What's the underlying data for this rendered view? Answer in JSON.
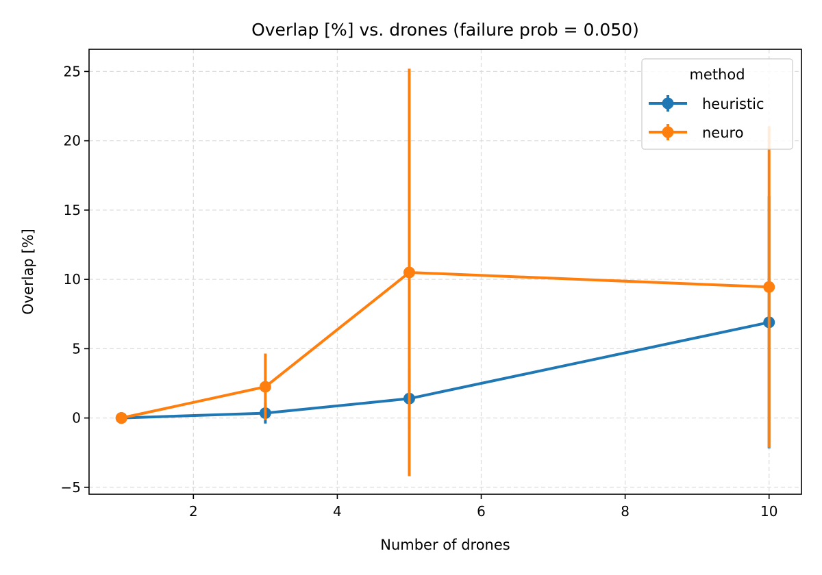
{
  "chart_data": {
    "type": "line",
    "title": "Overlap [%] vs. drones (failure prob = 0.050)",
    "xlabel": "Number of drones",
    "ylabel": "Overlap [%]",
    "xlim": [
      0.55,
      10.45
    ],
    "ylim": [
      -5.5,
      26.6
    ],
    "x_ticks": [
      2,
      4,
      6,
      8,
      10
    ],
    "x_tick_labels": [
      "2",
      "4",
      "6",
      "8",
      "10"
    ],
    "y_ticks": [
      -5,
      0,
      5,
      10,
      15,
      20,
      25
    ],
    "y_tick_labels": [
      "−5",
      "0",
      "5",
      "10",
      "15",
      "20",
      "25"
    ],
    "grid": true,
    "legend": {
      "title": "method",
      "placement": "top-right"
    },
    "series": [
      {
        "name": "heuristic",
        "color": "#1f77b4",
        "x": [
          1,
          3,
          5,
          10
        ],
        "y": [
          0.0,
          0.35,
          1.4,
          6.9
        ],
        "yerr": [
          0.0,
          0.75,
          2.2,
          9.1
        ]
      },
      {
        "name": "neuro",
        "color": "#ff7f0e",
        "x": [
          1,
          3,
          5,
          10
        ],
        "y": [
          0.0,
          2.25,
          10.5,
          9.45
        ],
        "yerr": [
          0.0,
          2.4,
          14.7,
          11.6
        ]
      }
    ]
  }
}
